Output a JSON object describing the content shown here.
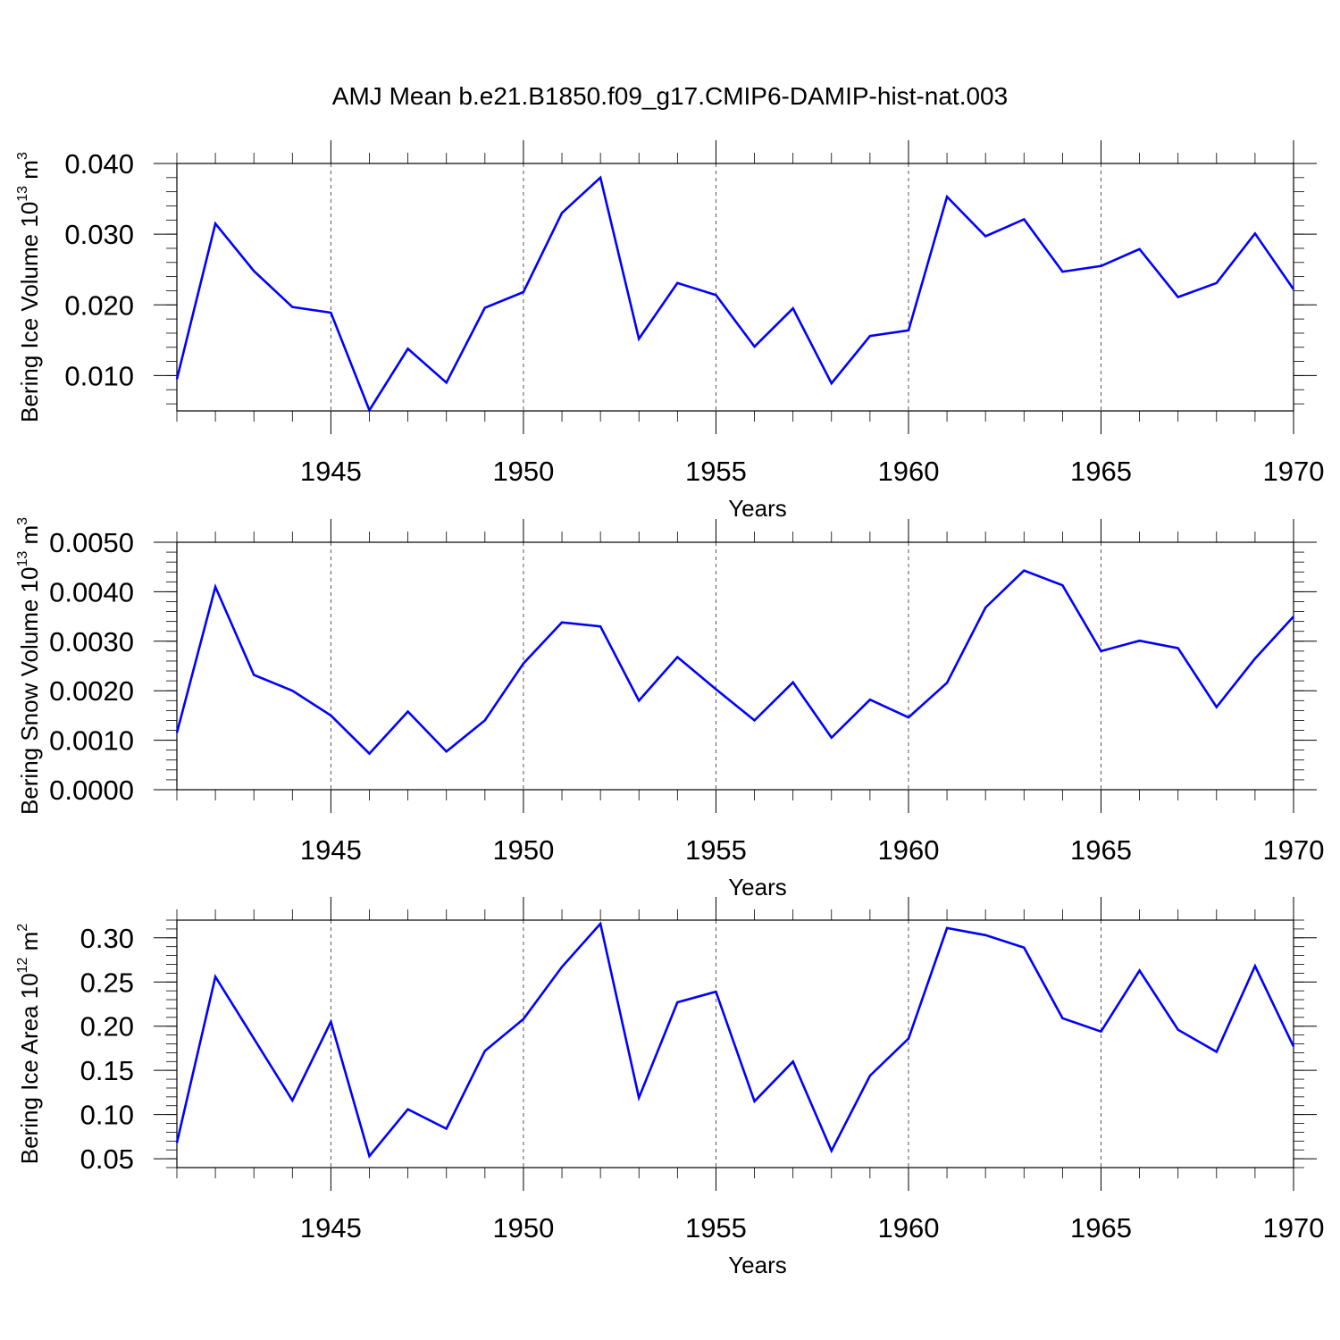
{
  "title": "AMJ Mean b.e21.B1850.f09_g17.CMIP6-DAMIP-hist-nat.003",
  "colors": {
    "line": "#0000ff",
    "axis": "#000000",
    "grid": "#555555"
  },
  "chart_data": [
    {
      "type": "line",
      "name": "ice-volume",
      "ylabel": {
        "main": "Bering Ice Volume 10",
        "exp": "13",
        "unit": " m",
        "unit_exp": "3"
      },
      "xlabel": "Years",
      "xlim": [
        1941,
        1970
      ],
      "ylim": [
        0.005,
        0.04
      ],
      "xticks": [
        1945,
        1950,
        1955,
        1960,
        1965,
        1970
      ],
      "xtick_labels": [
        "1945",
        "1950",
        "1955",
        "1960",
        "1965",
        "1970"
      ],
      "yticks": [
        0.01,
        0.02,
        0.03,
        0.04
      ],
      "ytick_labels": [
        "0.010",
        "0.020",
        "0.030",
        "0.040"
      ],
      "yminor_step": 0.002,
      "x": [
        1941,
        1942,
        1943,
        1944,
        1945,
        1946,
        1947,
        1948,
        1949,
        1950,
        1951,
        1952,
        1953,
        1954,
        1955,
        1956,
        1957,
        1958,
        1959,
        1960,
        1961,
        1962,
        1963,
        1964,
        1965,
        1966,
        1967,
        1968,
        1969,
        1970
      ],
      "values": [
        0.0095,
        0.0315,
        0.0248,
        0.0197,
        0.0189,
        0.0051,
        0.0138,
        0.009,
        0.0196,
        0.0218,
        0.033,
        0.038,
        0.0152,
        0.0231,
        0.0214,
        0.0141,
        0.0195,
        0.0089,
        0.0156,
        0.0164,
        0.0353,
        0.0297,
        0.0321,
        0.0247,
        0.0255,
        0.0279,
        0.0211,
        0.0231,
        0.0301,
        0.0222
      ]
    },
    {
      "type": "line",
      "name": "snow-volume",
      "ylabel": {
        "main": "Bering Snow Volume 10",
        "exp": "13",
        "unit": " m",
        "unit_exp": "3"
      },
      "xlabel": "Years",
      "xlim": [
        1941,
        1970
      ],
      "ylim": [
        0.0,
        0.005
      ],
      "xticks": [
        1945,
        1950,
        1955,
        1960,
        1965,
        1970
      ],
      "xtick_labels": [
        "1945",
        "1950",
        "1955",
        "1960",
        "1965",
        "1970"
      ],
      "yticks": [
        0.0,
        0.001,
        0.002,
        0.003,
        0.004,
        0.005
      ],
      "ytick_labels": [
        "0.0000",
        "0.0010",
        "0.0020",
        "0.0030",
        "0.0040",
        "0.0050"
      ],
      "yminor_step": 0.0002,
      "x": [
        1941,
        1942,
        1943,
        1944,
        1945,
        1946,
        1947,
        1948,
        1949,
        1950,
        1951,
        1952,
        1953,
        1954,
        1955,
        1956,
        1957,
        1958,
        1959,
        1960,
        1961,
        1962,
        1963,
        1964,
        1965,
        1966,
        1967,
        1968,
        1969,
        1970
      ],
      "values": [
        0.00115,
        0.0041,
        0.00232,
        0.002,
        0.0015,
        0.00073,
        0.00158,
        0.00077,
        0.0014,
        0.00255,
        0.00338,
        0.0033,
        0.0018,
        0.00268,
        0.00203,
        0.0014,
        0.00217,
        0.00105,
        0.00182,
        0.00146,
        0.00216,
        0.00368,
        0.00443,
        0.00413,
        0.0028,
        0.00301,
        0.00286,
        0.00167,
        0.00265,
        0.0035
      ]
    },
    {
      "type": "line",
      "name": "ice-area",
      "ylabel": {
        "main": "Bering Ice Area 10",
        "exp": "12",
        "unit": " m",
        "unit_exp": "2"
      },
      "xlabel": "Years",
      "xlim": [
        1941,
        1970
      ],
      "ylim": [
        0.04,
        0.32
      ],
      "xticks": [
        1945,
        1950,
        1955,
        1960,
        1965,
        1970
      ],
      "xtick_labels": [
        "1945",
        "1950",
        "1955",
        "1960",
        "1965",
        "1970"
      ],
      "yticks": [
        0.05,
        0.1,
        0.15,
        0.2,
        0.25,
        0.3
      ],
      "ytick_labels": [
        "0.05",
        "0.10",
        "0.15",
        "0.20",
        "0.25",
        "0.30"
      ],
      "yminor_step": 0.01,
      "x": [
        1941,
        1942,
        1943,
        1944,
        1945,
        1946,
        1947,
        1948,
        1949,
        1950,
        1951,
        1952,
        1953,
        1954,
        1955,
        1956,
        1957,
        1958,
        1959,
        1960,
        1961,
        1962,
        1963,
        1964,
        1965,
        1966,
        1967,
        1968,
        1969,
        1970
      ],
      "values": [
        0.068,
        0.256,
        0.186,
        0.116,
        0.205,
        0.053,
        0.106,
        0.084,
        0.172,
        0.208,
        0.267,
        0.316,
        0.119,
        0.227,
        0.239,
        0.115,
        0.16,
        0.059,
        0.144,
        0.186,
        0.311,
        0.303,
        0.289,
        0.209,
        0.194,
        0.263,
        0.196,
        0.171,
        0.268,
        0.177
      ]
    }
  ]
}
